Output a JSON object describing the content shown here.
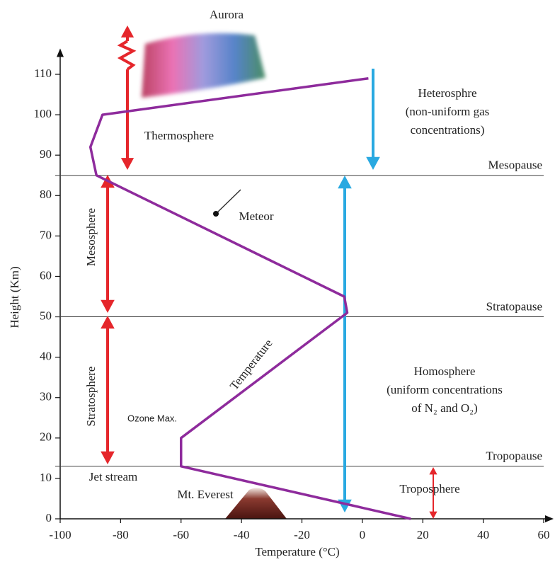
{
  "chart_data": {
    "type": "line",
    "x_label": "Temperature (°C)",
    "y_label": "Height (Km)",
    "xlim": [
      -100,
      60
    ],
    "xticks": [
      -100,
      -80,
      -60,
      -40,
      -20,
      0,
      20,
      40,
      60
    ],
    "ylim": [
      0,
      115
    ],
    "yticks": [
      0,
      10,
      20,
      30,
      40,
      50,
      60,
      70,
      80,
      90,
      100,
      110
    ],
    "x": [
      16,
      -60,
      -60,
      -5,
      -6,
      -88,
      -90,
      -86,
      2
    ],
    "series": [
      {
        "name": "Temperature",
        "color": "#8e2b9c",
        "values": [
          0,
          13,
          20,
          51,
          55,
          85,
          92,
          100,
          109
        ]
      }
    ],
    "boundaries": [
      {
        "label": "Mesopause",
        "value": 85
      },
      {
        "label": "Stratopause",
        "value": 50
      },
      {
        "label": "Tropopause",
        "value": 13
      }
    ],
    "annotations": {
      "aurora": "Aurora",
      "thermosphere": "Thermosphere",
      "meteor": "Meteor",
      "mesosphere": "Mesosphere",
      "stratosphere": "Stratosphere",
      "ozone": "Ozone Max.",
      "jet_stream": "Jet stream",
      "everest": "Mt. Everest",
      "troposphere": "Troposphere",
      "heterosphere": [
        "Heterosphre",
        "(non-uniform gas",
        "concentrations)"
      ],
      "homosphere": [
        "Homosphere",
        "(uniform concentrations",
        "of N₂ and O₂)"
      ]
    }
  }
}
